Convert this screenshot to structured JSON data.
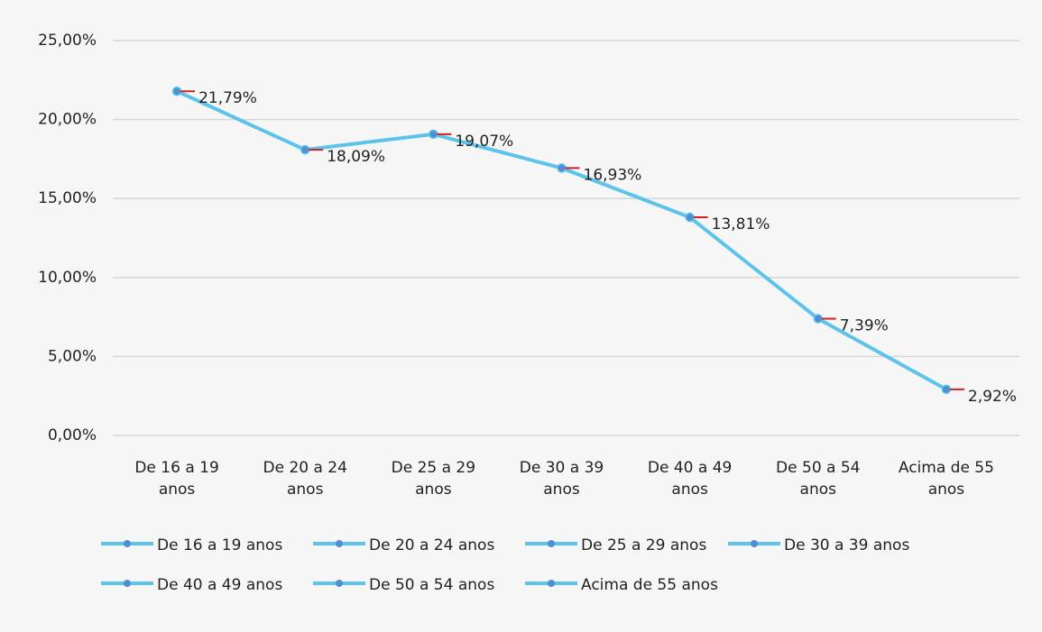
{
  "chart_data": {
    "type": "line",
    "categories": [
      "De 16 a 19 anos",
      "De 20 a 24 anos",
      "De 25 a 29 anos",
      "De 30 a 39 anos",
      "De 40 a 49 anos",
      "De 50 a 54 anos",
      "Acima de 55 anos"
    ],
    "values": [
      21.79,
      18.09,
      19.07,
      16.93,
      13.81,
      7.39,
      2.92
    ],
    "value_labels": [
      "21,79%",
      "18,09%",
      "19,07%",
      "16,93%",
      "13,81%",
      "7,39%",
      "2,92%"
    ],
    "color": "#5ec3ea",
    "marker_color": "#4f8fd0",
    "ylim": [
      0,
      25
    ],
    "yticks": [
      {
        "value": 0,
        "label": "0,00%"
      },
      {
        "value": 5,
        "label": "5,00%"
      },
      {
        "value": 10,
        "label": "10,00%"
      },
      {
        "value": 15,
        "label": "15,00%"
      },
      {
        "value": 20,
        "label": "20,00%"
      },
      {
        "value": 25,
        "label": "25,00%"
      }
    ],
    "grid": true,
    "legend": "bottom"
  }
}
